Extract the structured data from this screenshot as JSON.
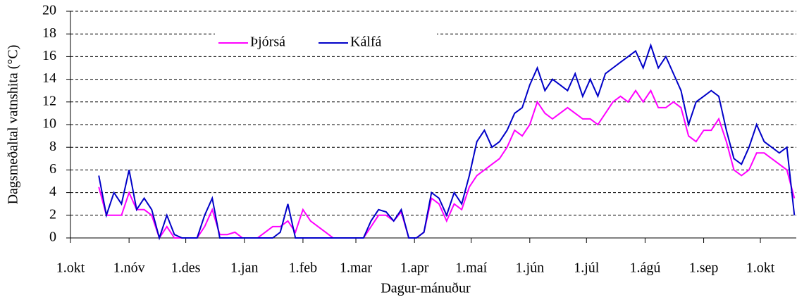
{
  "chart_data": {
    "type": "line",
    "x_label": "Dagur-mánuður",
    "y_label": "Dagsmeðaltal vatnshita (°C)",
    "x": [
      15,
      19,
      23,
      27,
      31,
      35,
      39,
      43,
      47,
      51,
      55,
      59,
      63,
      67,
      71,
      75,
      79,
      83,
      87,
      91,
      95,
      99,
      103,
      107,
      111,
      115,
      119,
      123,
      127,
      131,
      135,
      139,
      143,
      147,
      151,
      155,
      159,
      163,
      167,
      171,
      175,
      179,
      183,
      187,
      191,
      195,
      199,
      203,
      207,
      211,
      215,
      219,
      223,
      227,
      231,
      235,
      239,
      243,
      247,
      251,
      255,
      259,
      263,
      267,
      271,
      275,
      279,
      283,
      287,
      291,
      295,
      299,
      303,
      307,
      311,
      315,
      319,
      323,
      327,
      331,
      335,
      339,
      343,
      347,
      351,
      355,
      359,
      363,
      367,
      371,
      375,
      379,
      383
    ],
    "series": [
      {
        "name": "Þjórsá",
        "color": "#ff00ff",
        "values": [
          4.5,
          2,
          2,
          2,
          4,
          2.5,
          2.5,
          2,
          0,
          1,
          0,
          0,
          0,
          0,
          1,
          2.5,
          0.3,
          0.3,
          0.5,
          0,
          0,
          0,
          0.5,
          1,
          1,
          1.5,
          0.5,
          2.5,
          1.5,
          1,
          0.5,
          0,
          0,
          0,
          0,
          0,
          1,
          2,
          2,
          1.5,
          2.3,
          0,
          0,
          0.5,
          3.5,
          3,
          1.5,
          3,
          2.5,
          4.5,
          5.5,
          6,
          6.5,
          7,
          8,
          9.5,
          9,
          10,
          12,
          11,
          10.5,
          11,
          11.5,
          11,
          10.5,
          10.5,
          10,
          11,
          12,
          12.5,
          12,
          13,
          12,
          13,
          11.5,
          11.5,
          12,
          11.5,
          9,
          8.5,
          9.5,
          9.5,
          10.5,
          8.5,
          6,
          5.5,
          6,
          7.5,
          7.5,
          7,
          6.5,
          6,
          3.5
        ]
      },
      {
        "name": "Kálfá",
        "color": "#0000c8",
        "values": [
          5.5,
          2,
          4,
          3,
          6,
          2.5,
          3.5,
          2.5,
          0,
          2,
          0.3,
          0,
          0,
          0,
          2,
          3.5,
          0,
          0,
          0,
          0,
          0,
          0,
          0,
          0,
          0.5,
          3,
          0,
          0,
          0,
          0,
          0,
          0,
          0,
          0,
          0,
          0,
          1.5,
          2.5,
          2.3,
          1.5,
          2.5,
          0,
          0,
          0.5,
          4,
          3.5,
          2,
          4,
          3,
          5.5,
          8.5,
          9.5,
          8,
          8.5,
          9.5,
          11,
          11.5,
          13.5,
          15,
          13,
          14,
          13.5,
          13,
          14.5,
          12.5,
          14,
          12.5,
          14.5,
          15,
          15.5,
          16,
          16.5,
          15,
          17,
          15,
          16,
          14.5,
          13,
          10,
          12,
          12.5,
          13,
          12.5,
          9.5,
          7,
          6.5,
          8,
          10,
          8.5,
          8,
          7.5,
          8,
          2
        ]
      }
    ],
    "xlim": [
      0,
      384
    ],
    "xticks": [
      {
        "value": 0,
        "label": "1.okt"
      },
      {
        "value": 31,
        "label": "1.nóv"
      },
      {
        "value": 61,
        "label": "1.des"
      },
      {
        "value": 92,
        "label": "1.jan"
      },
      {
        "value": 123,
        "label": "1.feb"
      },
      {
        "value": 151,
        "label": "1.mar"
      },
      {
        "value": 182,
        "label": "1.apr"
      },
      {
        "value": 212,
        "label": "1.maí"
      },
      {
        "value": 243,
        "label": "1.jún"
      },
      {
        "value": 273,
        "label": "1.júl"
      },
      {
        "value": 304,
        "label": "1.ágú"
      },
      {
        "value": 335,
        "label": "1.sep"
      },
      {
        "value": 365,
        "label": "1.okt"
      }
    ],
    "ylim": [
      0,
      20
    ],
    "yticks": [
      0,
      2,
      4,
      6,
      8,
      10,
      12,
      14,
      16,
      18,
      20
    ],
    "grid": true
  }
}
